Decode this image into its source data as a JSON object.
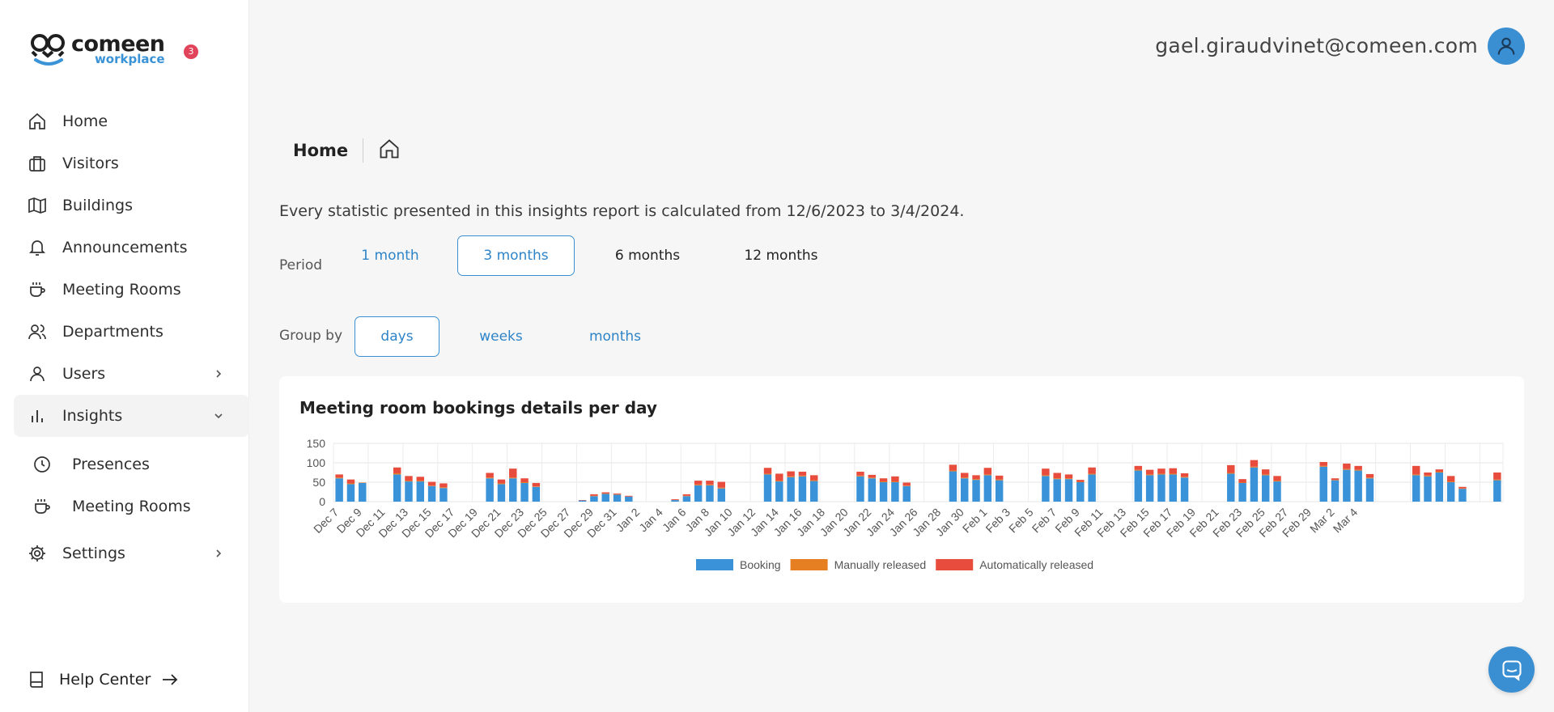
{
  "app": {
    "logo_name": "comeen",
    "logo_sub": "workplace",
    "notification_count": "3"
  },
  "sidebar": {
    "items": [
      {
        "label": "Home",
        "icon": "home-icon"
      },
      {
        "label": "Visitors",
        "icon": "briefcase-icon"
      },
      {
        "label": "Buildings",
        "icon": "map-icon"
      },
      {
        "label": "Announcements",
        "icon": "bell-icon"
      },
      {
        "label": "Meeting Rooms",
        "icon": "coffee-icon"
      },
      {
        "label": "Departments",
        "icon": "users-icon"
      },
      {
        "label": "Users",
        "icon": "user-icon"
      },
      {
        "label": "Insights",
        "icon": "bar-chart-icon"
      }
    ],
    "sub_items": [
      {
        "label": "Presences",
        "icon": "clock-icon"
      },
      {
        "label": "Meeting Rooms",
        "icon": "coffee-icon"
      }
    ],
    "settings_label": "Settings",
    "help_label": "Help Center"
  },
  "header": {
    "user_email": "gael.giraudvinet@comeen.com"
  },
  "breadcrumb": {
    "title": "Home"
  },
  "statement": "Every statistic presented in this insights report is calculated from 12/6/2023 to 3/4/2024.",
  "period": {
    "label": "Period",
    "options": [
      "1 month",
      "3 months",
      "6 months",
      "12 months"
    ],
    "selected": "3 months"
  },
  "group_by": {
    "label": "Group by",
    "options": [
      "days",
      "weeks",
      "months"
    ],
    "selected": "days"
  },
  "colors": {
    "booking": "#3a93d8",
    "manually_released": "#e67e22",
    "automatically_released": "#e74c3c",
    "accent": "#3a8fd2"
  },
  "chart_data": {
    "type": "bar",
    "stacked": true,
    "title": "Meeting room bookings details per day",
    "ylim": [
      0,
      150
    ],
    "yticks": [
      0,
      50,
      100,
      150
    ],
    "grid": true,
    "legend_position": "bottom",
    "x_tick_labels": [
      "Dec 7",
      "Dec 9",
      "Dec 11",
      "Dec 13",
      "Dec 15",
      "Dec 17",
      "Dec 19",
      "Dec 21",
      "Dec 23",
      "Dec 25",
      "Dec 27",
      "Dec 29",
      "Dec 31",
      "Jan 2",
      "Jan 4",
      "Jan 6",
      "Jan 8",
      "Jan 10",
      "Jan 12",
      "Jan 14",
      "Jan 16",
      "Jan 18",
      "Jan 20",
      "Jan 22",
      "Jan 24",
      "Jan 26",
      "Jan 28",
      "Jan 30",
      "Feb 1",
      "Feb 3",
      "Feb 5",
      "Feb 7",
      "Feb 9",
      "Feb 11",
      "Feb 13",
      "Feb 15",
      "Feb 17",
      "Feb 19",
      "Feb 21",
      "Feb 23",
      "Feb 25",
      "Feb 27",
      "Feb 29",
      "Mar 2",
      "Mar 4"
    ],
    "series": [
      {
        "name": "Booking",
        "values": [
          60,
          45,
          48,
          0,
          0,
          70,
          52,
          52,
          40,
          35,
          0,
          0,
          0,
          60,
          45,
          60,
          48,
          38,
          0,
          0,
          0,
          3,
          14,
          20,
          18,
          13,
          0,
          0,
          0,
          4,
          14,
          42,
          42,
          34,
          0,
          0,
          0,
          70,
          52,
          63,
          65,
          53,
          0,
          0,
          0,
          65,
          60,
          50,
          50,
          40,
          0,
          0,
          0,
          78,
          60,
          56,
          68,
          55,
          0,
          0,
          0,
          66,
          58,
          58,
          50,
          70,
          0,
          0,
          0,
          80,
          68,
          70,
          70,
          62,
          0,
          0,
          0,
          72,
          48,
          88,
          68,
          52,
          0,
          0,
          0,
          90,
          55,
          82,
          80,
          60,
          0,
          0,
          0,
          68,
          65,
          75,
          50,
          33,
          0,
          0,
          55
        ]
      },
      {
        "name": "Manually released",
        "values": [
          2,
          2,
          1,
          0,
          0,
          3,
          2,
          2,
          1,
          2,
          0,
          0,
          0,
          2,
          2,
          2,
          2,
          1,
          0,
          0,
          0,
          0,
          1,
          1,
          1,
          0,
          0,
          0,
          0,
          0,
          1,
          2,
          2,
          2,
          0,
          0,
          0,
          2,
          2,
          2,
          2,
          2,
          0,
          0,
          0,
          2,
          2,
          2,
          2,
          1,
          0,
          0,
          0,
          2,
          2,
          2,
          2,
          2,
          0,
          0,
          0,
          2,
          2,
          2,
          1,
          2,
          0,
          0,
          0,
          2,
          2,
          2,
          2,
          2,
          0,
          0,
          0,
          2,
          1,
          2,
          2,
          2,
          0,
          0,
          0,
          2,
          1,
          2,
          2,
          2,
          0,
          0,
          0,
          2,
          2,
          2,
          2,
          1,
          0,
          0,
          2
        ]
      },
      {
        "name": "Automatically released",
        "values": [
          8,
          10,
          0,
          0,
          0,
          15,
          12,
          10,
          10,
          10,
          0,
          0,
          0,
          12,
          10,
          23,
          10,
          9,
          0,
          0,
          0,
          1,
          4,
          3,
          2,
          2,
          0,
          0,
          0,
          2,
          4,
          10,
          10,
          15,
          0,
          0,
          0,
          15,
          18,
          13,
          10,
          13,
          0,
          0,
          0,
          10,
          7,
          8,
          13,
          8,
          0,
          0,
          0,
          15,
          12,
          10,
          17,
          10,
          0,
          0,
          0,
          17,
          14,
          10,
          5,
          16,
          0,
          0,
          0,
          10,
          12,
          13,
          14,
          9,
          0,
          0,
          0,
          20,
          9,
          17,
          13,
          12,
          0,
          0,
          0,
          10,
          4,
          14,
          10,
          9,
          0,
          0,
          0,
          22,
          8,
          6,
          14,
          4,
          0,
          0,
          18
        ]
      }
    ]
  }
}
